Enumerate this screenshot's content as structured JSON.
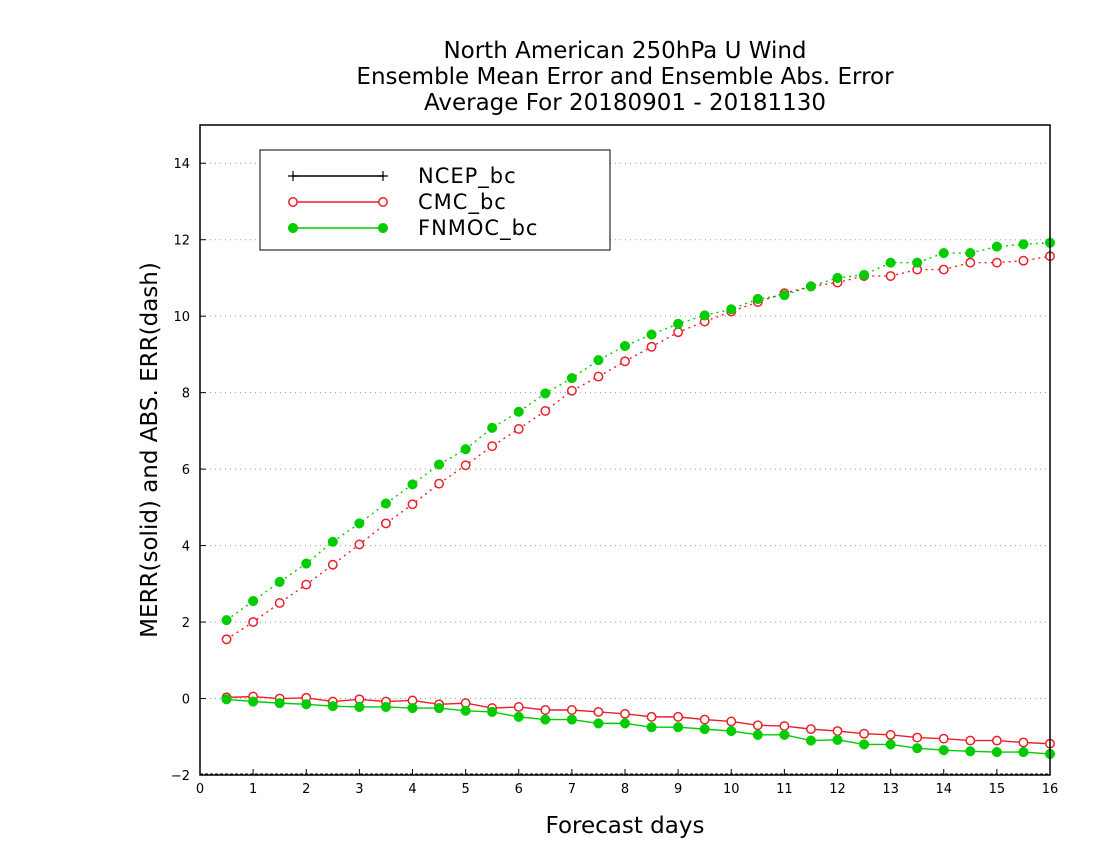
{
  "chart_data": {
    "type": "line",
    "title": [
      "North American 250hPa U Wind",
      "Ensemble Mean Error and Ensemble Abs. Error",
      "Average For 20180901 - 20181130"
    ],
    "xlabel": "Forecast days",
    "ylabel": "MERR(solid) and ABS. ERR(dash)",
    "xlim": [
      0,
      16
    ],
    "ylim": [
      -2,
      15
    ],
    "x_ticks": [
      0,
      1,
      2,
      3,
      4,
      5,
      6,
      7,
      8,
      9,
      10,
      11,
      12,
      13,
      14,
      15,
      16
    ],
    "y_ticks": [
      -2,
      0,
      2,
      4,
      6,
      8,
      10,
      12,
      14
    ],
    "grid": "horizontal dotted",
    "legend": {
      "placement": "top-left",
      "entries": [
        {
          "name": "NCEP_bc",
          "color": "#000000",
          "marker": "plus"
        },
        {
          "name": "CMC_bc",
          "color": "#e8202a",
          "marker": "open-circle"
        },
        {
          "name": "FNMOC_bc",
          "color": "#00cc00",
          "marker": "filled-circle"
        }
      ]
    },
    "x": [
      0.5,
      1.0,
      1.5,
      2.0,
      2.5,
      3.0,
      3.5,
      4.0,
      4.5,
      5.0,
      5.5,
      6.0,
      6.5,
      7.0,
      7.5,
      8.0,
      8.5,
      9.0,
      9.5,
      10.0,
      10.5,
      11.0,
      11.5,
      12.0,
      12.5,
      13.0,
      13.5,
      14.0,
      14.5,
      15.0,
      15.5,
      16.0
    ],
    "series": [
      {
        "name": "CMC_bc",
        "style": "dash",
        "color": "#e8202a",
        "marker": "open-circle",
        "values": [
          1.55,
          2.0,
          2.5,
          2.98,
          3.5,
          4.03,
          4.58,
          5.08,
          5.62,
          6.1,
          6.6,
          7.05,
          7.52,
          8.05,
          8.42,
          8.82,
          9.2,
          9.58,
          9.86,
          10.12,
          10.37,
          10.6,
          10.78,
          10.88,
          11.05,
          11.05,
          11.22,
          11.22,
          11.4,
          11.4,
          11.45,
          11.57
        ]
      },
      {
        "name": "FNMOC_bc",
        "style": "dash",
        "color": "#00cc00",
        "marker": "filled-circle",
        "values": [
          2.05,
          2.55,
          3.05,
          3.53,
          4.1,
          4.58,
          5.1,
          5.6,
          6.12,
          6.52,
          7.08,
          7.5,
          7.98,
          8.38,
          8.85,
          9.22,
          9.52,
          9.8,
          10.02,
          10.18,
          10.45,
          10.55,
          10.78,
          11.0,
          11.08,
          11.4,
          11.4,
          11.65,
          11.65,
          11.82,
          11.88,
          11.92
        ]
      },
      {
        "name": "CMC_bc",
        "style": "solid",
        "color": "#e8202a",
        "marker": "open-circle",
        "values": [
          0.03,
          0.05,
          0.0,
          0.02,
          -0.08,
          -0.02,
          -0.08,
          -0.05,
          -0.15,
          -0.12,
          -0.25,
          -0.22,
          -0.3,
          -0.3,
          -0.35,
          -0.4,
          -0.48,
          -0.48,
          -0.55,
          -0.6,
          -0.7,
          -0.72,
          -0.8,
          -0.85,
          -0.92,
          -0.95,
          -1.02,
          -1.05,
          -1.1,
          -1.1,
          -1.15,
          -1.18
        ]
      },
      {
        "name": "FNMOC_bc",
        "style": "solid",
        "color": "#00cc00",
        "marker": "filled-circle",
        "values": [
          -0.02,
          -0.08,
          -0.12,
          -0.15,
          -0.2,
          -0.22,
          -0.22,
          -0.25,
          -0.25,
          -0.32,
          -0.35,
          -0.48,
          -0.55,
          -0.55,
          -0.65,
          -0.65,
          -0.75,
          -0.75,
          -0.8,
          -0.85,
          -0.95,
          -0.95,
          -1.1,
          -1.08,
          -1.2,
          -1.2,
          -1.3,
          -1.35,
          -1.38,
          -1.4,
          -1.4,
          -1.45
        ]
      }
    ]
  }
}
